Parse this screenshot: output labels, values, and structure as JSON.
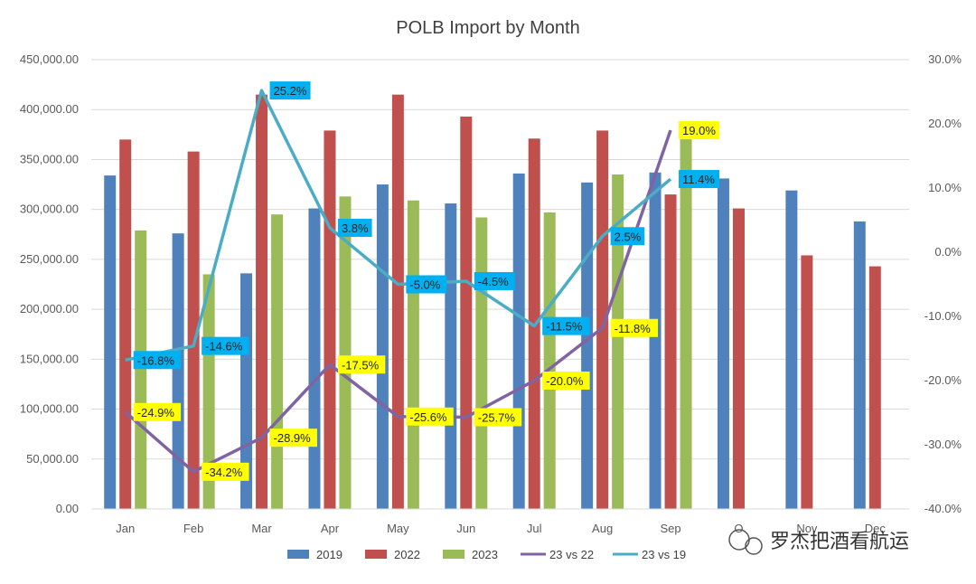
{
  "chart_data": {
    "type": "bar+line",
    "title": "POLB Import by Month",
    "categories": [
      "Jan",
      "Feb",
      "Mar",
      "Apr",
      "May",
      "Jun",
      "Jul",
      "Aug",
      "Sep",
      "Oct",
      "Nov",
      "Dec"
    ],
    "category_labels": [
      "Jan",
      "Feb",
      "Mar",
      "Apr",
      "May",
      "Jun",
      "Jul",
      "Aug",
      "Sep",
      "O",
      "Nov",
      "Dec"
    ],
    "ylim_left": [
      0,
      450000
    ],
    "ylim_right": [
      -40,
      30
    ],
    "left_ticks": [
      "0.00",
      "50,000.00",
      "100,000.00",
      "150,000.00",
      "200,000.00",
      "250,000.00",
      "300,000.00",
      "350,000.00",
      "400,000.00",
      "450,000.00"
    ],
    "right_ticks": [
      "-40.0%",
      "-30.0%",
      "-20.0%",
      "-10.0%",
      "0.0%",
      "10.0%",
      "20.0%",
      "30.0%"
    ],
    "bar_series": [
      {
        "name": "2019",
        "color": "#4F81BD",
        "values": [
          334000,
          276000,
          236000,
          301000,
          325000,
          306000,
          336000,
          327000,
          337000,
          331000,
          319000,
          288000
        ]
      },
      {
        "name": "2022",
        "color": "#C0504D",
        "values": [
          370000,
          358000,
          415000,
          379000,
          415000,
          393000,
          371000,
          379000,
          315000,
          301000,
          254000,
          243000
        ]
      },
      {
        "name": "2023",
        "color": "#9BBB59",
        "values": [
          279000,
          235000,
          295000,
          313000,
          309000,
          292000,
          297000,
          335000,
          375000,
          null,
          null,
          null
        ]
      }
    ],
    "line_series": [
      {
        "name": "23 vs 22",
        "color": "#8064A2",
        "label_bg": "#FFFF00",
        "values": [
          -24.9,
          -34.2,
          -28.9,
          -17.5,
          -25.6,
          -25.7,
          -20.0,
          -11.8,
          19.0
        ],
        "labels": [
          "-24.9%",
          "-34.2%",
          "-28.9%",
          "-17.5%",
          "-25.6%",
          "-25.7%",
          "-20.0%",
          "-11.8%",
          "19.0%"
        ]
      },
      {
        "name": "23 vs 19",
        "color": "#4BACC6",
        "label_bg": "#00B0F0",
        "values": [
          -16.8,
          -14.6,
          25.2,
          3.8,
          -5.0,
          -4.5,
          -11.5,
          2.5,
          11.4
        ],
        "labels": [
          "-16.8%",
          "-14.6%",
          "25.2%",
          "3.8%",
          "-5.0%",
          "-4.5%",
          "-11.5%",
          "2.5%",
          "11.4%"
        ]
      }
    ],
    "legend": [
      "2019",
      "2022",
      "2023",
      "23 vs 22",
      "23 vs 19"
    ],
    "legend_position": "bottom",
    "grid": true
  },
  "watermark": {
    "text": "罗杰把酒看航运"
  }
}
